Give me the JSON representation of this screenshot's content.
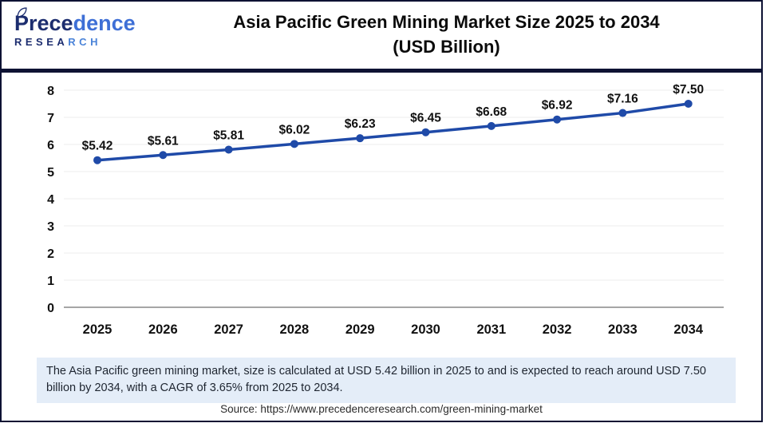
{
  "logo": {
    "title_dark": "Prece",
    "title_light": "dence",
    "subtitle_dark": "RESEA",
    "subtitle_light": "RCH"
  },
  "header": {
    "title_line1": "Asia Pacific Green Mining Market Size 2025 to 2034",
    "title_line2": "(USD Billion)"
  },
  "chart_data": {
    "type": "line",
    "title": "Asia Pacific Green Mining Market Size 2025 to 2034 (USD Billion)",
    "categories": [
      "2025",
      "2026",
      "2027",
      "2028",
      "2029",
      "2030",
      "2031",
      "2032",
      "2033",
      "2034"
    ],
    "values": [
      5.42,
      5.61,
      5.81,
      6.02,
      6.23,
      6.45,
      6.68,
      6.92,
      7.16,
      7.5
    ],
    "point_labels": [
      "$5.42",
      "$5.61",
      "$5.81",
      "$6.02",
      "$6.23",
      "$6.45",
      "$6.68",
      "$6.92",
      "$7.16",
      "$7.50"
    ],
    "xlabel": "",
    "ylabel": "",
    "ylim": [
      0,
      8
    ],
    "yticks": [
      0,
      1,
      2,
      3,
      4,
      5,
      6,
      7,
      8
    ],
    "grid": true,
    "legend_position": "none",
    "line_color": "#1f4aa8",
    "marker": "circle"
  },
  "summary": {
    "text": "The Asia Pacific green mining market, size is calculated at USD 5.42 billion in 2025 to and is expected to reach around USD 7.50 billion by 2034, with a CAGR of 3.65% from 2025 to 2034."
  },
  "source": {
    "text": "Source: https://www.precedenceresearch.com/green-mining-market"
  },
  "colors": {
    "accent_line": "#1f4aa8",
    "navy_dark": "#0e1233",
    "logo_dark": "#1c2d6f",
    "logo_light": "#3e6fd6",
    "summary_bg": "#e4edf8",
    "gridline": "#ececec",
    "axis_baseline": "#a6a6a6",
    "label_text": "#111111"
  }
}
